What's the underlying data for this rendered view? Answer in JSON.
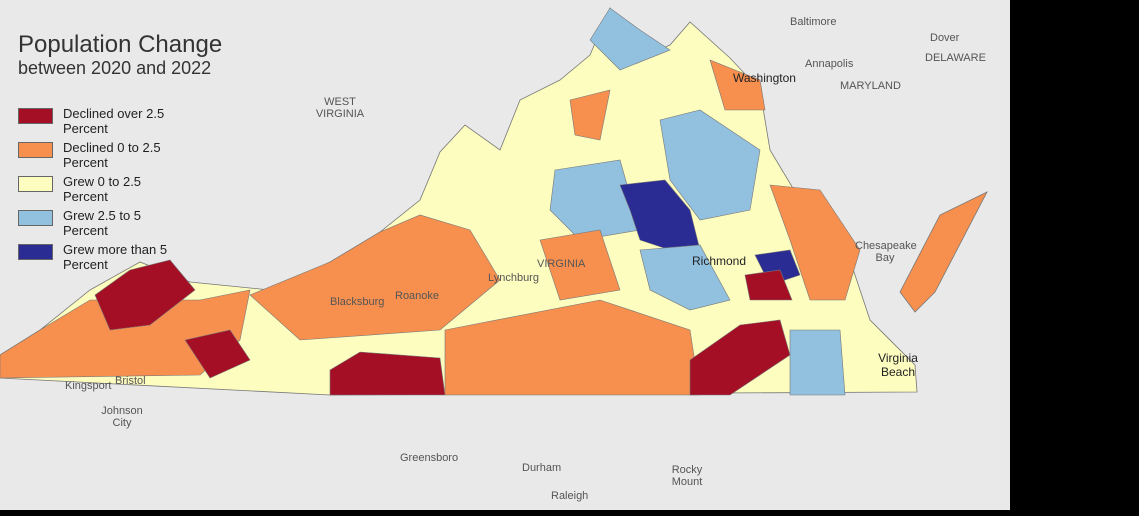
{
  "title": "Population Change",
  "subtitle": "between 2020 and 2022",
  "legend": [
    {
      "label": "Declined over 2.5 Percent",
      "color": "#a50f26"
    },
    {
      "label": "Declined 0 to 2.5 Percent",
      "color": "#f7904f"
    },
    {
      "label": "Grew 0 to 2.5 Percent",
      "color": "#fdfdc0"
    },
    {
      "label": "Grew 2.5 to 5 Percent",
      "color": "#92c0df"
    },
    {
      "label": "Grew more than 5 Percent",
      "color": "#2b2c93"
    }
  ],
  "places": [
    "Baltimore",
    "Dover",
    "DELAWARE",
    "Annapolis",
    "MARYLAND",
    "Washington",
    "WEST VIRGINIA",
    "VIRGINIA",
    "Richmond",
    "Chesapeake Bay",
    "Lynchburg",
    "Blacksburg",
    "Roanoke",
    "Kingsport",
    "Bristol",
    "Johnson City",
    "Greensboro",
    "Durham",
    "Rocky Mount",
    "Raleigh",
    "Virginia Beach"
  ]
}
